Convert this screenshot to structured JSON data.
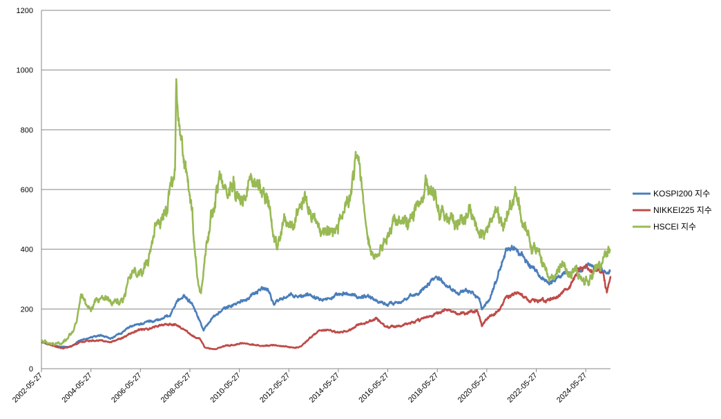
{
  "chart_data": {
    "type": "line",
    "title": "",
    "xlabel": "",
    "ylabel": "",
    "ylim": [
      0,
      1200
    ],
    "yticks": [
      0,
      200,
      400,
      600,
      800,
      1000,
      1200
    ],
    "xlim": [
      2002.4,
      2025.4
    ],
    "x_tick_labels": [
      "2002-05-27",
      "2004-05-27",
      "2006-05-27",
      "2008-05-27",
      "2010-05-27",
      "2012-05-27",
      "2014-05-27",
      "2016-05-27",
      "2018-05-27",
      "2020-05-27",
      "2022-05-27",
      "2024-05-27"
    ],
    "x_tick_years": [
      2002.4,
      2004.4,
      2006.4,
      2008.4,
      2010.4,
      2012.4,
      2014.4,
      2016.4,
      2018.4,
      2020.4,
      2022.4,
      2024.4
    ],
    "grid": true,
    "legend_position": "right",
    "series": [
      {
        "name": "KOSPI200 지수",
        "color": "#4a7ebb",
        "x": [
          2002.4,
          2002.8,
          2003.2,
          2003.6,
          2004.0,
          2004.4,
          2004.8,
          2005.2,
          2005.6,
          2006.0,
          2006.4,
          2006.8,
          2007.2,
          2007.6,
          2007.9,
          2008.2,
          2008.5,
          2008.8,
          2008.95,
          2009.3,
          2009.7,
          2010.0,
          2010.4,
          2010.7,
          2011.0,
          2011.3,
          2011.6,
          2011.8,
          2012.0,
          2012.4,
          2012.8,
          2013.2,
          2013.6,
          2014.0,
          2014.4,
          2014.8,
          2015.2,
          2015.6,
          2016.0,
          2016.4,
          2016.8,
          2017.2,
          2017.6,
          2018.0,
          2018.3,
          2018.6,
          2019.0,
          2019.4,
          2019.8,
          2020.1,
          2020.2,
          2020.5,
          2020.8,
          2021.2,
          2021.5,
          2021.8,
          2022.2,
          2022.6,
          2022.9,
          2023.2,
          2023.6,
          2023.9,
          2024.2,
          2024.5,
          2024.9,
          2025.2,
          2025.4
        ],
        "values": [
          88,
          80,
          72,
          75,
          95,
          105,
          110,
          100,
          118,
          140,
          150,
          160,
          165,
          180,
          230,
          240,
          220,
          160,
          130,
          170,
          195,
          210,
          220,
          235,
          255,
          270,
          260,
          215,
          230,
          245,
          240,
          250,
          240,
          235,
          245,
          250,
          240,
          245,
          225,
          215,
          225,
          235,
          250,
          285,
          310,
          295,
          265,
          255,
          260,
          230,
          195,
          230,
          300,
          400,
          405,
          380,
          340,
          305,
          290,
          300,
          320,
          330,
          325,
          350,
          340,
          320,
          330
        ]
      },
      {
        "name": "NIKKEI225 지수",
        "color": "#be4b48",
        "x": [
          2002.4,
          2002.8,
          2003.2,
          2003.6,
          2004.0,
          2004.4,
          2004.8,
          2005.2,
          2005.6,
          2006.0,
          2006.4,
          2006.8,
          2007.2,
          2007.6,
          2007.9,
          2008.2,
          2008.5,
          2008.8,
          2009.0,
          2009.4,
          2009.8,
          2010.2,
          2010.6,
          2011.0,
          2011.4,
          2011.8,
          2012.2,
          2012.6,
          2012.9,
          2013.2,
          2013.6,
          2014.0,
          2014.4,
          2014.8,
          2015.2,
          2015.6,
          2015.9,
          2016.3,
          2016.7,
          2017.2,
          2017.6,
          2018.0,
          2018.4,
          2018.8,
          2019.2,
          2019.6,
          2020.0,
          2020.2,
          2020.5,
          2020.9,
          2021.2,
          2021.6,
          2022.0,
          2022.4,
          2022.8,
          2023.2,
          2023.5,
          2023.8,
          2024.1,
          2024.4,
          2024.6,
          2024.8,
          2025.1,
          2025.25,
          2025.4
        ],
        "values": [
          90,
          78,
          68,
          75,
          90,
          95,
          95,
          90,
          100,
          120,
          130,
          135,
          145,
          150,
          145,
          130,
          110,
          100,
          70,
          65,
          75,
          80,
          85,
          80,
          75,
          80,
          75,
          70,
          75,
          100,
          125,
          130,
          120,
          125,
          145,
          155,
          170,
          140,
          140,
          150,
          160,
          170,
          185,
          195,
          185,
          185,
          195,
          145,
          175,
          195,
          240,
          250,
          235,
          230,
          225,
          240,
          260,
          280,
          330,
          340,
          320,
          335,
          320,
          260,
          310
        ]
      },
      {
        "name": "HSCEI 지수",
        "color": "#98b954",
        "x": [
          2002.4,
          2002.8,
          2003.2,
          2003.5,
          2003.8,
          2004.0,
          2004.2,
          2004.4,
          2004.6,
          2004.9,
          2005.3,
          2005.7,
          2006.0,
          2006.4,
          2006.7,
          2007.0,
          2007.3,
          2007.6,
          2007.8,
          2007.85,
          2008.0,
          2008.3,
          2008.5,
          2008.7,
          2008.85,
          2009.0,
          2009.3,
          2009.6,
          2009.9,
          2010.2,
          2010.5,
          2010.8,
          2011.0,
          2011.3,
          2011.6,
          2011.8,
          2011.9,
          2012.2,
          2012.5,
          2012.8,
          2013.1,
          2013.4,
          2013.7,
          2014.0,
          2014.3,
          2014.6,
          2014.9,
          2015.1,
          2015.3,
          2015.5,
          2015.7,
          2016.0,
          2016.3,
          2016.6,
          2016.9,
          2017.2,
          2017.5,
          2017.8,
          2018.0,
          2018.3,
          2018.6,
          2018.9,
          2019.2,
          2019.5,
          2019.8,
          2020.0,
          2020.2,
          2020.5,
          2020.8,
          2021.1,
          2021.3,
          2021.6,
          2021.9,
          2022.2,
          2022.5,
          2022.8,
          2023.1,
          2023.4,
          2023.7,
          2024.0,
          2024.2,
          2024.5,
          2024.8,
          2025.0,
          2025.2,
          2025.4
        ],
        "values": [
          95,
          85,
          85,
          105,
          150,
          240,
          215,
          200,
          230,
          240,
          220,
          230,
          320,
          320,
          350,
          460,
          500,
          580,
          650,
          960,
          780,
          650,
          520,
          300,
          250,
          380,
          520,
          630,
          580,
          620,
          560,
          640,
          620,
          600,
          540,
          420,
          400,
          480,
          470,
          520,
          580,
          500,
          450,
          480,
          470,
          510,
          570,
          700,
          650,
          500,
          420,
          370,
          440,
          470,
          490,
          500,
          530,
          560,
          620,
          580,
          520,
          490,
          480,
          500,
          520,
          470,
          440,
          490,
          500,
          480,
          540,
          560,
          480,
          420,
          400,
          320,
          300,
          350,
          320,
          330,
          310,
          290,
          350,
          340,
          380,
          400
        ]
      }
    ]
  }
}
